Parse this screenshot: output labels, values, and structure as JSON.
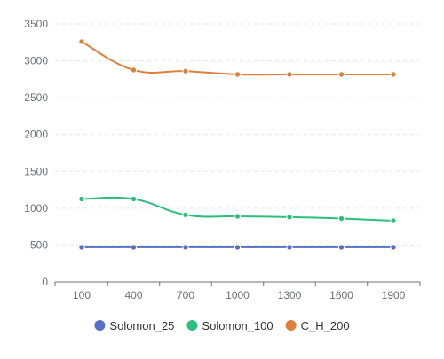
{
  "chart_data": {
    "type": "line",
    "x": [
      100,
      400,
      700,
      1000,
      1300,
      1600,
      1900
    ],
    "x_tick_labels": [
      "100",
      "400",
      "700",
      "1000",
      "1300",
      "1600",
      "1900"
    ],
    "y_tick_labels": [
      "0",
      "500",
      "1000",
      "1500",
      "2000",
      "2500",
      "3000",
      "3500"
    ],
    "ylim": [
      0,
      3500
    ],
    "y_ticks": [
      0,
      500,
      1000,
      1500,
      2000,
      2500,
      3000,
      3500
    ],
    "grid": "horizontal-dashed",
    "legend_position": "bottom",
    "smooth": true,
    "series": [
      {
        "name": "Solomon_25",
        "color": "#5470c6",
        "values": [
          470,
          470,
          470,
          470,
          470,
          470,
          470
        ]
      },
      {
        "name": "Solomon_100",
        "color": "#2bbf7c",
        "values": [
          1125,
          1125,
          910,
          890,
          880,
          860,
          830
        ]
      },
      {
        "name": "C_H_200",
        "color": "#e07f39",
        "values": [
          3260,
          2875,
          2860,
          2815,
          2815,
          2815,
          2815
        ]
      }
    ],
    "title": "",
    "xlabel": "",
    "ylabel": ""
  }
}
